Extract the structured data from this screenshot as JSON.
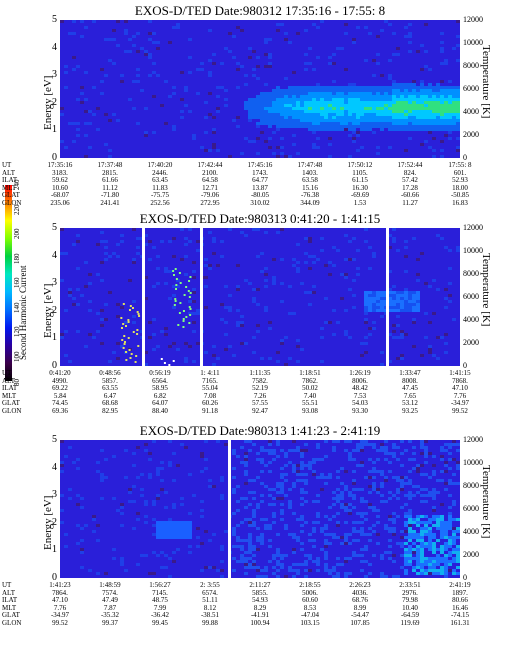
{
  "colorbar": {
    "label": "Second Harmonic Current",
    "ticks": [
      "80",
      "100",
      "120",
      "140",
      "160",
      "180",
      "200",
      "220",
      "240"
    ],
    "colors": [
      "#000000",
      "#3b004a",
      "#2a00a0",
      "#0018f0",
      "#0070ff",
      "#00b8ff",
      "#00e8c0",
      "#00d040",
      "#80ff00",
      "#ffff00",
      "#ff8000",
      "#ff0000"
    ]
  },
  "chart_data": [
    {
      "type": "heatmap",
      "title": "EXOS-D/TED   Date:980312  17:35:16 - 17:55: 8",
      "ylabel": "Energy [eV]",
      "y2label": "Temperature [K]",
      "ylim": [
        0,
        5
      ],
      "yticks": [
        "0",
        "1",
        "2",
        "3",
        "4",
        "5"
      ],
      "y2lim": [
        0,
        12000
      ],
      "y2ticks": [
        "0",
        "2000",
        "4000",
        "6000",
        "8000",
        "10000",
        "12000"
      ],
      "table": {
        "columns": [
          "17:35:16",
          "17:37:48",
          "17:40:20",
          "17:42:44",
          "17:45:16",
          "17:47:48",
          "17:50:12",
          "17:52:44",
          "17:55: 8"
        ],
        "rows": [
          {
            "name": "ALT",
            "values": [
              "3183.",
              "2815.",
              "2446.",
              "2100.",
              "1743.",
              "1403.",
              "1105.",
              "824.",
              "601."
            ]
          },
          {
            "name": "ILAT",
            "values": [
              "59.62",
              "61.66",
              "63.45",
              "64.58",
              "64.77",
              "63.58",
              "61.15",
              "57.42",
              "52.93"
            ]
          },
          {
            "name": "MLT",
            "values": [
              "10.60",
              "11.12",
              "11.83",
              "12.71",
              "13.87",
              "15.16",
              "16.30",
              "17.28",
              "18.00"
            ]
          },
          {
            "name": "GLAT",
            "values": [
              "-68.07",
              "-71.80",
              "-75.75",
              "-79.06",
              "-80.05",
              "-76.38",
              "-69.69",
              "-60.66",
              "-50.85"
            ]
          },
          {
            "name": "GLON",
            "values": [
              "235.06",
              "241.41",
              "252.56",
              "272.95",
              "310.02",
              "344.09",
              "1.53",
              "11.27",
              "16.83"
            ]
          }
        ]
      },
      "gaps": []
    },
    {
      "type": "heatmap",
      "title": "EXOS-D/TED   Date:980313   0:41:20 - 1:41:15",
      "ylabel": "Energy [eV]",
      "y2label": "Temperature [K]",
      "ylim": [
        0,
        5
      ],
      "yticks": [
        "0",
        "1",
        "2",
        "3",
        "4",
        "5"
      ],
      "y2lim": [
        0,
        12000
      ],
      "y2ticks": [
        "0",
        "2000",
        "4000",
        "6000",
        "8000",
        "10000",
        "12000"
      ],
      "table": {
        "columns": [
          "0:41:20",
          "0:48:56",
          "0:56:19",
          "1: 4:11",
          "1:11:35",
          "1:18:51",
          "1:26:19",
          "1:33:47",
          "1:41:15"
        ],
        "rows": [
          {
            "name": "ALT",
            "values": [
              "4990.",
              "5857.",
              "6564.",
              "7165.",
              "7582.",
              "7862.",
              "8006.",
              "8008.",
              "7868."
            ]
          },
          {
            "name": "ILAT",
            "values": [
              "69.22",
              "63.55",
              "58.95",
              "55.04",
              "52.19",
              "50.02",
              "48.42",
              "47.45",
              "47.10"
            ]
          },
          {
            "name": "MLT",
            "values": [
              "5.84",
              "6.47",
              "6.82",
              "7.08",
              "7.26",
              "7.40",
              "7.53",
              "7.65",
              "7.76"
            ]
          },
          {
            "name": "GLAT",
            "values": [
              "74.45",
              "68.68",
              "64.07",
              "60.26",
              "57.55",
              "55.51",
              "54.03",
              "53.12",
              "-34.97"
            ]
          },
          {
            "name": "GLON",
            "values": [
              "69.36",
              "82.95",
              "88.40",
              "91.18",
              "92.47",
              "93.08",
              "93.30",
              "93.25",
              "99.52"
            ]
          }
        ]
      },
      "gaps": []
    },
    {
      "type": "heatmap",
      "title": "EXOS-D/TED   Date:980313   1:41:23 - 2:41:19",
      "ylabel": "Energy [eV]",
      "y2label": "Temperature [K]",
      "ylim": [
        0,
        5
      ],
      "yticks": [
        "0",
        "1",
        "2",
        "3",
        "4",
        "5"
      ],
      "y2lim": [
        0,
        12000
      ],
      "y2ticks": [
        "0",
        "2000",
        "4000",
        "6000",
        "8000",
        "10000",
        "12000"
      ],
      "table": {
        "columns": [
          "1:41:23",
          "1:48:59",
          "1:56:27",
          "2: 3:55",
          "2:11:27",
          "2:18:55",
          "2:26:23",
          "2:33:51",
          "2:41:19"
        ],
        "rows": [
          {
            "name": "ALT",
            "values": [
              "7864.",
              "7574.",
              "7145.",
              "6574.",
              "5855.",
              "5006.",
              "4036.",
              "2976.",
              "1897."
            ]
          },
          {
            "name": "ILAT",
            "values": [
              "47.10",
              "47.49",
              "48.75",
              "51.11",
              "54.93",
              "60.60",
              "68.76",
              "79.98",
              "80.66"
            ]
          },
          {
            "name": "MLT",
            "values": [
              "7.76",
              "7.87",
              "7.99",
              "8.12",
              "8.29",
              "8.53",
              "8.99",
              "10.40",
              "16.46"
            ]
          },
          {
            "name": "GLAT",
            "values": [
              "-34.97",
              "-35.32",
              "-36.42",
              "-38.51",
              "-41.91",
              "-47.04",
              "-54.47",
              "-64.59",
              "-74.15"
            ]
          },
          {
            "name": "GLON",
            "values": [
              "99.52",
              "99.37",
              "99.45",
              "99.88",
              "100.94",
              "103.15",
              "107.85",
              "119.69",
              "161.31"
            ]
          }
        ]
      },
      "gaps": []
    }
  ]
}
